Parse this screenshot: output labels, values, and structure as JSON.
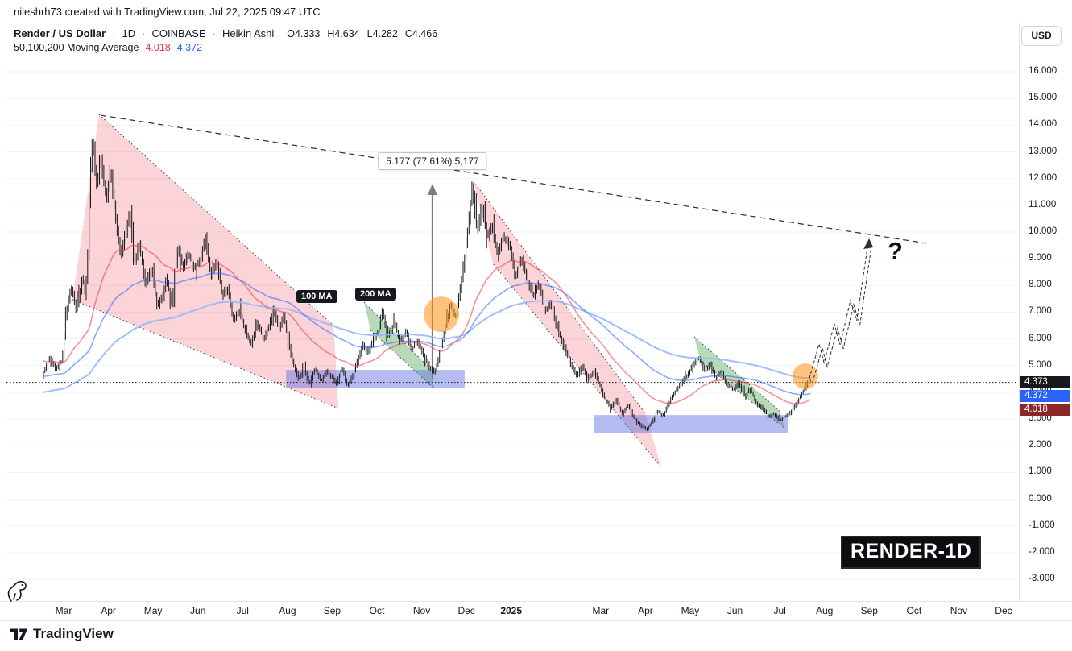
{
  "header": {
    "attribution": "nileshrh73 created with TradingView.com, Jul 22, 2025 09:47 UTC"
  },
  "toolbar": {
    "currency_button": "USD"
  },
  "legend": {
    "symbol": "Render / US Dollar",
    "separator": "·",
    "interval": "1D",
    "exchange": "COINBASE",
    "chart_type": "Heikin Ashi",
    "ohlc": {
      "open": "O4.333",
      "high": "H4.634",
      "low": "L4.282",
      "close": "C4.466"
    },
    "indicator": {
      "label": "50,100,200 Moving Average",
      "value_red": "4.018",
      "value_blue": "4.372"
    }
  },
  "annotations": {
    "measure_label": "5.177 (77.61%) 5,177",
    "ma100_tag": "100 MA",
    "ma200_tag": "200 MA",
    "question_mark": "?",
    "watermark": "RENDER-1D"
  },
  "price_scale": {
    "tags": [
      {
        "text": "4.373",
        "bg": "#16181d"
      },
      {
        "text": "4.372",
        "bg": "#2962ff"
      },
      {
        "text": "4.018",
        "bg": "#8c2626"
      }
    ]
  },
  "footer": {
    "brand": "TradingView"
  },
  "colors": {
    "candle": "#16181d",
    "grid": "#f0f3fa",
    "axis_line": "#e0e3eb",
    "channel_fill": "rgba(242,54,69,0.22)",
    "wedge_fill": "rgba(67,160,71,0.38)",
    "zone_fill": "rgba(91,106,225,0.45)",
    "circle_fill": "rgba(255,146,20,0.55)",
    "ma50": "rgba(242,54,69,0.55)",
    "ma100": "rgba(41,98,255,0.55)",
    "ma200": "rgba(148,184,255,0.9)",
    "trendline": "#2a2e39",
    "measure_arrow": "#787b86",
    "shape_border": "#1c1e24"
  },
  "chart_data": {
    "type": "candlestick",
    "style": "Heikin Ashi",
    "symbol": "Render / US Dollar · 1D · COINBASE",
    "ohlc_last": {
      "open": 4.333,
      "high": 4.634,
      "low": 4.282,
      "close": 4.466
    },
    "last_price": 4.373,
    "ma_values": {
      "ma50": 4.018,
      "ma100": 4.372
    },
    "y_axis": {
      "range": [
        -3,
        16
      ],
      "labels": [
        "16.000",
        "15.000",
        "14.000",
        "13.000",
        "12.000",
        "11.000",
        "10.000",
        "9.000",
        "8.000",
        "7.000",
        "6.000",
        "5.000",
        "4.000",
        "3.000",
        "2.000",
        "1.000",
        "0.000",
        "-1.000",
        "-2.000",
        "-3.000"
      ]
    },
    "x_axis": {
      "t_unit": "months since 2024-03-01",
      "ticks": [
        {
          "label": "Mar",
          "t": 0
        },
        {
          "label": "Apr",
          "t": 1
        },
        {
          "label": "May",
          "t": 2
        },
        {
          "label": "Jun",
          "t": 3
        },
        {
          "label": "Jul",
          "t": 4
        },
        {
          "label": "Aug",
          "t": 5
        },
        {
          "label": "Sep",
          "t": 6
        },
        {
          "label": "Oct",
          "t": 7
        },
        {
          "label": "Nov",
          "t": 8
        },
        {
          "label": "Dec",
          "t": 9
        },
        {
          "label": "2025",
          "t": 10,
          "bold": true
        },
        {
          "label": "Mar",
          "t": 12
        },
        {
          "label": "Apr",
          "t": 13
        },
        {
          "label": "May",
          "t": 14
        },
        {
          "label": "Jun",
          "t": 15
        },
        {
          "label": "Jul",
          "t": 16
        },
        {
          "label": "Aug",
          "t": 17
        },
        {
          "label": "Sep",
          "t": 18
        },
        {
          "label": "Oct",
          "t": 19
        },
        {
          "label": "Nov",
          "t": 20
        },
        {
          "label": "Dec",
          "t": 21
        }
      ]
    },
    "price_path": [
      [
        -0.45,
        4.6
      ],
      [
        -0.3,
        5.3
      ],
      [
        -0.15,
        4.9
      ],
      [
        0,
        5.2
      ],
      [
        0.08,
        6.9
      ],
      [
        0.15,
        7.6
      ],
      [
        0.22,
        7.9
      ],
      [
        0.3,
        7.1
      ],
      [
        0.38,
        7.6
      ],
      [
        0.45,
        8.3
      ],
      [
        0.52,
        7.7
      ],
      [
        0.58,
        9.5
      ],
      [
        0.62,
        12.2
      ],
      [
        0.68,
        13.6
      ],
      [
        0.73,
        12.4
      ],
      [
        0.78,
        11.6
      ],
      [
        0.85,
        12.9
      ],
      [
        0.92,
        11.9
      ],
      [
        1.0,
        11.3
      ],
      [
        1.08,
        12.3
      ],
      [
        1.18,
        10.6
      ],
      [
        1.3,
        9.1
      ],
      [
        1.42,
        10.0
      ],
      [
        1.5,
        10.7
      ],
      [
        1.62,
        8.9
      ],
      [
        1.72,
        9.6
      ],
      [
        1.85,
        8.1
      ],
      [
        2.0,
        8.6
      ],
      [
        2.12,
        7.2
      ],
      [
        2.25,
        7.6
      ],
      [
        2.32,
        8.3
      ],
      [
        2.45,
        7.3
      ],
      [
        2.58,
        9.4
      ],
      [
        2.7,
        8.7
      ],
      [
        2.82,
        9.2
      ],
      [
        2.95,
        8.6
      ],
      [
        3.1,
        9.1
      ],
      [
        3.2,
        9.8
      ],
      [
        3.32,
        8.3
      ],
      [
        3.45,
        8.9
      ],
      [
        3.58,
        7.6
      ],
      [
        3.7,
        7.9
      ],
      [
        3.82,
        6.7
      ],
      [
        3.95,
        7.1
      ],
      [
        4.1,
        6.2
      ],
      [
        4.22,
        5.8
      ],
      [
        4.35,
        6.6
      ],
      [
        4.5,
        6.0
      ],
      [
        4.62,
        6.5
      ],
      [
        4.72,
        7.1
      ],
      [
        4.85,
        6.4
      ],
      [
        4.95,
        6.9
      ],
      [
        5.05,
        5.9
      ],
      [
        5.15,
        5.1
      ],
      [
        5.28,
        4.5
      ],
      [
        5.4,
        4.9
      ],
      [
        5.52,
        4.3
      ],
      [
        5.65,
        4.9
      ],
      [
        5.78,
        4.4
      ],
      [
        5.9,
        4.8
      ],
      [
        6.0,
        4.6
      ],
      [
        6.12,
        4.3
      ],
      [
        6.25,
        4.9
      ],
      [
        6.38,
        4.2
      ],
      [
        6.5,
        4.7
      ],
      [
        6.6,
        5.2
      ],
      [
        6.72,
        5.8
      ],
      [
        6.82,
        5.5
      ],
      [
        6.95,
        5.9
      ],
      [
        7.05,
        6.3
      ],
      [
        7.15,
        7.0
      ],
      [
        7.28,
        6.1
      ],
      [
        7.42,
        6.6
      ],
      [
        7.55,
        5.9
      ],
      [
        7.68,
        6.3
      ],
      [
        7.8,
        5.6
      ],
      [
        7.92,
        5.9
      ],
      [
        8.05,
        5.5
      ],
      [
        8.18,
        5.0
      ],
      [
        8.32,
        4.7
      ],
      [
        8.45,
        5.6
      ],
      [
        8.55,
        6.4
      ],
      [
        8.68,
        7.3
      ],
      [
        8.78,
        6.8
      ],
      [
        8.9,
        8.0
      ],
      [
        9.0,
        9.2
      ],
      [
        9.08,
        10.4
      ],
      [
        9.16,
        11.8
      ],
      [
        9.26,
        10.1
      ],
      [
        9.38,
        10.9
      ],
      [
        9.5,
        9.8
      ],
      [
        9.6,
        10.3
      ],
      [
        9.72,
        9.2
      ],
      [
        9.85,
        9.8
      ],
      [
        10.0,
        9.5
      ],
      [
        10.12,
        8.3
      ],
      [
        10.25,
        9.0
      ],
      [
        10.4,
        8.2
      ],
      [
        10.52,
        7.6
      ],
      [
        10.65,
        8.1
      ],
      [
        10.78,
        7.0
      ],
      [
        10.9,
        7.4
      ],
      [
        11.05,
        6.4
      ],
      [
        11.2,
        5.8
      ],
      [
        11.35,
        5.1
      ],
      [
        11.5,
        4.6
      ],
      [
        11.62,
        5.0
      ],
      [
        11.75,
        4.5
      ],
      [
        11.88,
        4.8
      ],
      [
        12.0,
        4.3
      ],
      [
        12.12,
        3.8
      ],
      [
        12.25,
        3.4
      ],
      [
        12.38,
        3.7
      ],
      [
        12.5,
        3.2
      ],
      [
        12.65,
        3.5
      ],
      [
        12.78,
        3.0
      ],
      [
        12.9,
        2.8
      ],
      [
        13.05,
        2.6
      ],
      [
        13.18,
        2.9
      ],
      [
        13.3,
        3.3
      ],
      [
        13.42,
        3.1
      ],
      [
        13.55,
        3.6
      ],
      [
        13.68,
        4.0
      ],
      [
        13.8,
        4.3
      ],
      [
        13.95,
        4.6
      ],
      [
        14.08,
        5.0
      ],
      [
        14.22,
        5.3
      ],
      [
        14.35,
        4.8
      ],
      [
        14.48,
        5.1
      ],
      [
        14.6,
        4.5
      ],
      [
        14.72,
        4.8
      ],
      [
        14.85,
        4.3
      ],
      [
        15.0,
        4.1
      ],
      [
        15.12,
        4.4
      ],
      [
        15.25,
        3.9
      ],
      [
        15.38,
        4.1
      ],
      [
        15.5,
        3.6
      ],
      [
        15.65,
        3.4
      ],
      [
        15.78,
        3.1
      ],
      [
        15.9,
        3.2
      ],
      [
        16.02,
        2.95
      ],
      [
        16.15,
        3.1
      ],
      [
        16.28,
        3.25
      ],
      [
        16.4,
        3.6
      ],
      [
        16.5,
        3.9
      ],
      [
        16.6,
        4.2
      ],
      [
        16.7,
        4.47
      ]
    ],
    "shapes": {
      "channels": [
        {
          "type": "descending-channel-pink",
          "points": [
            [
              0.79,
              14.4
            ],
            [
              6.03,
              6.5
            ],
            [
              6.14,
              3.4
            ],
            [
              0.2,
              7.47
            ]
          ]
        },
        {
          "type": "descending-channel-pink",
          "points": [
            [
              9.16,
              11.9
            ],
            [
              13.0,
              3.2
            ],
            [
              13.35,
              1.2
            ],
            [
              9.6,
              8.8
            ]
          ]
        }
      ],
      "wedges": [
        {
          "type": "descending-wedge-green",
          "points": [
            [
              6.71,
              7.38
            ],
            [
              8.2,
              4.87
            ],
            [
              8.29,
              4.12
            ],
            [
              6.86,
              6.32
            ]
          ]
        },
        {
          "type": "descending-wedge-green",
          "points": [
            [
              14.09,
              6.08
            ],
            [
              16.0,
              3.3
            ],
            [
              16.12,
              2.64
            ],
            [
              14.23,
              5.17
            ]
          ]
        }
      ],
      "support_zones": [
        {
          "t0": 4.97,
          "t1": 8.96,
          "p_top": 4.84,
          "p_bottom": 4.15
        },
        {
          "t0": 11.84,
          "t1": 16.18,
          "p_top": 3.15,
          "p_bottom": 2.49
        }
      ],
      "highlight_circles": [
        {
          "t": 8.44,
          "p": 6.92,
          "r": 22
        },
        {
          "t": 16.57,
          "p": 4.6,
          "r": 16
        }
      ],
      "trendline": {
        "style": "dashed",
        "from": [
          0.83,
          14.37
        ],
        "to": [
          19.27,
          9.58
        ]
      },
      "measure_arrow": {
        "t": 8.24,
        "p_from": 4.51,
        "p_to": 11.81
      },
      "projection_path": [
        [
          16.66,
          4.51
        ],
        [
          16.88,
          5.81
        ],
        [
          16.99,
          5.11
        ],
        [
          17.22,
          6.56
        ],
        [
          17.35,
          5.78
        ],
        [
          17.58,
          7.44
        ],
        [
          17.72,
          6.68
        ],
        [
          17.98,
          9.64
        ]
      ],
      "last_price_line": 4.373
    }
  }
}
